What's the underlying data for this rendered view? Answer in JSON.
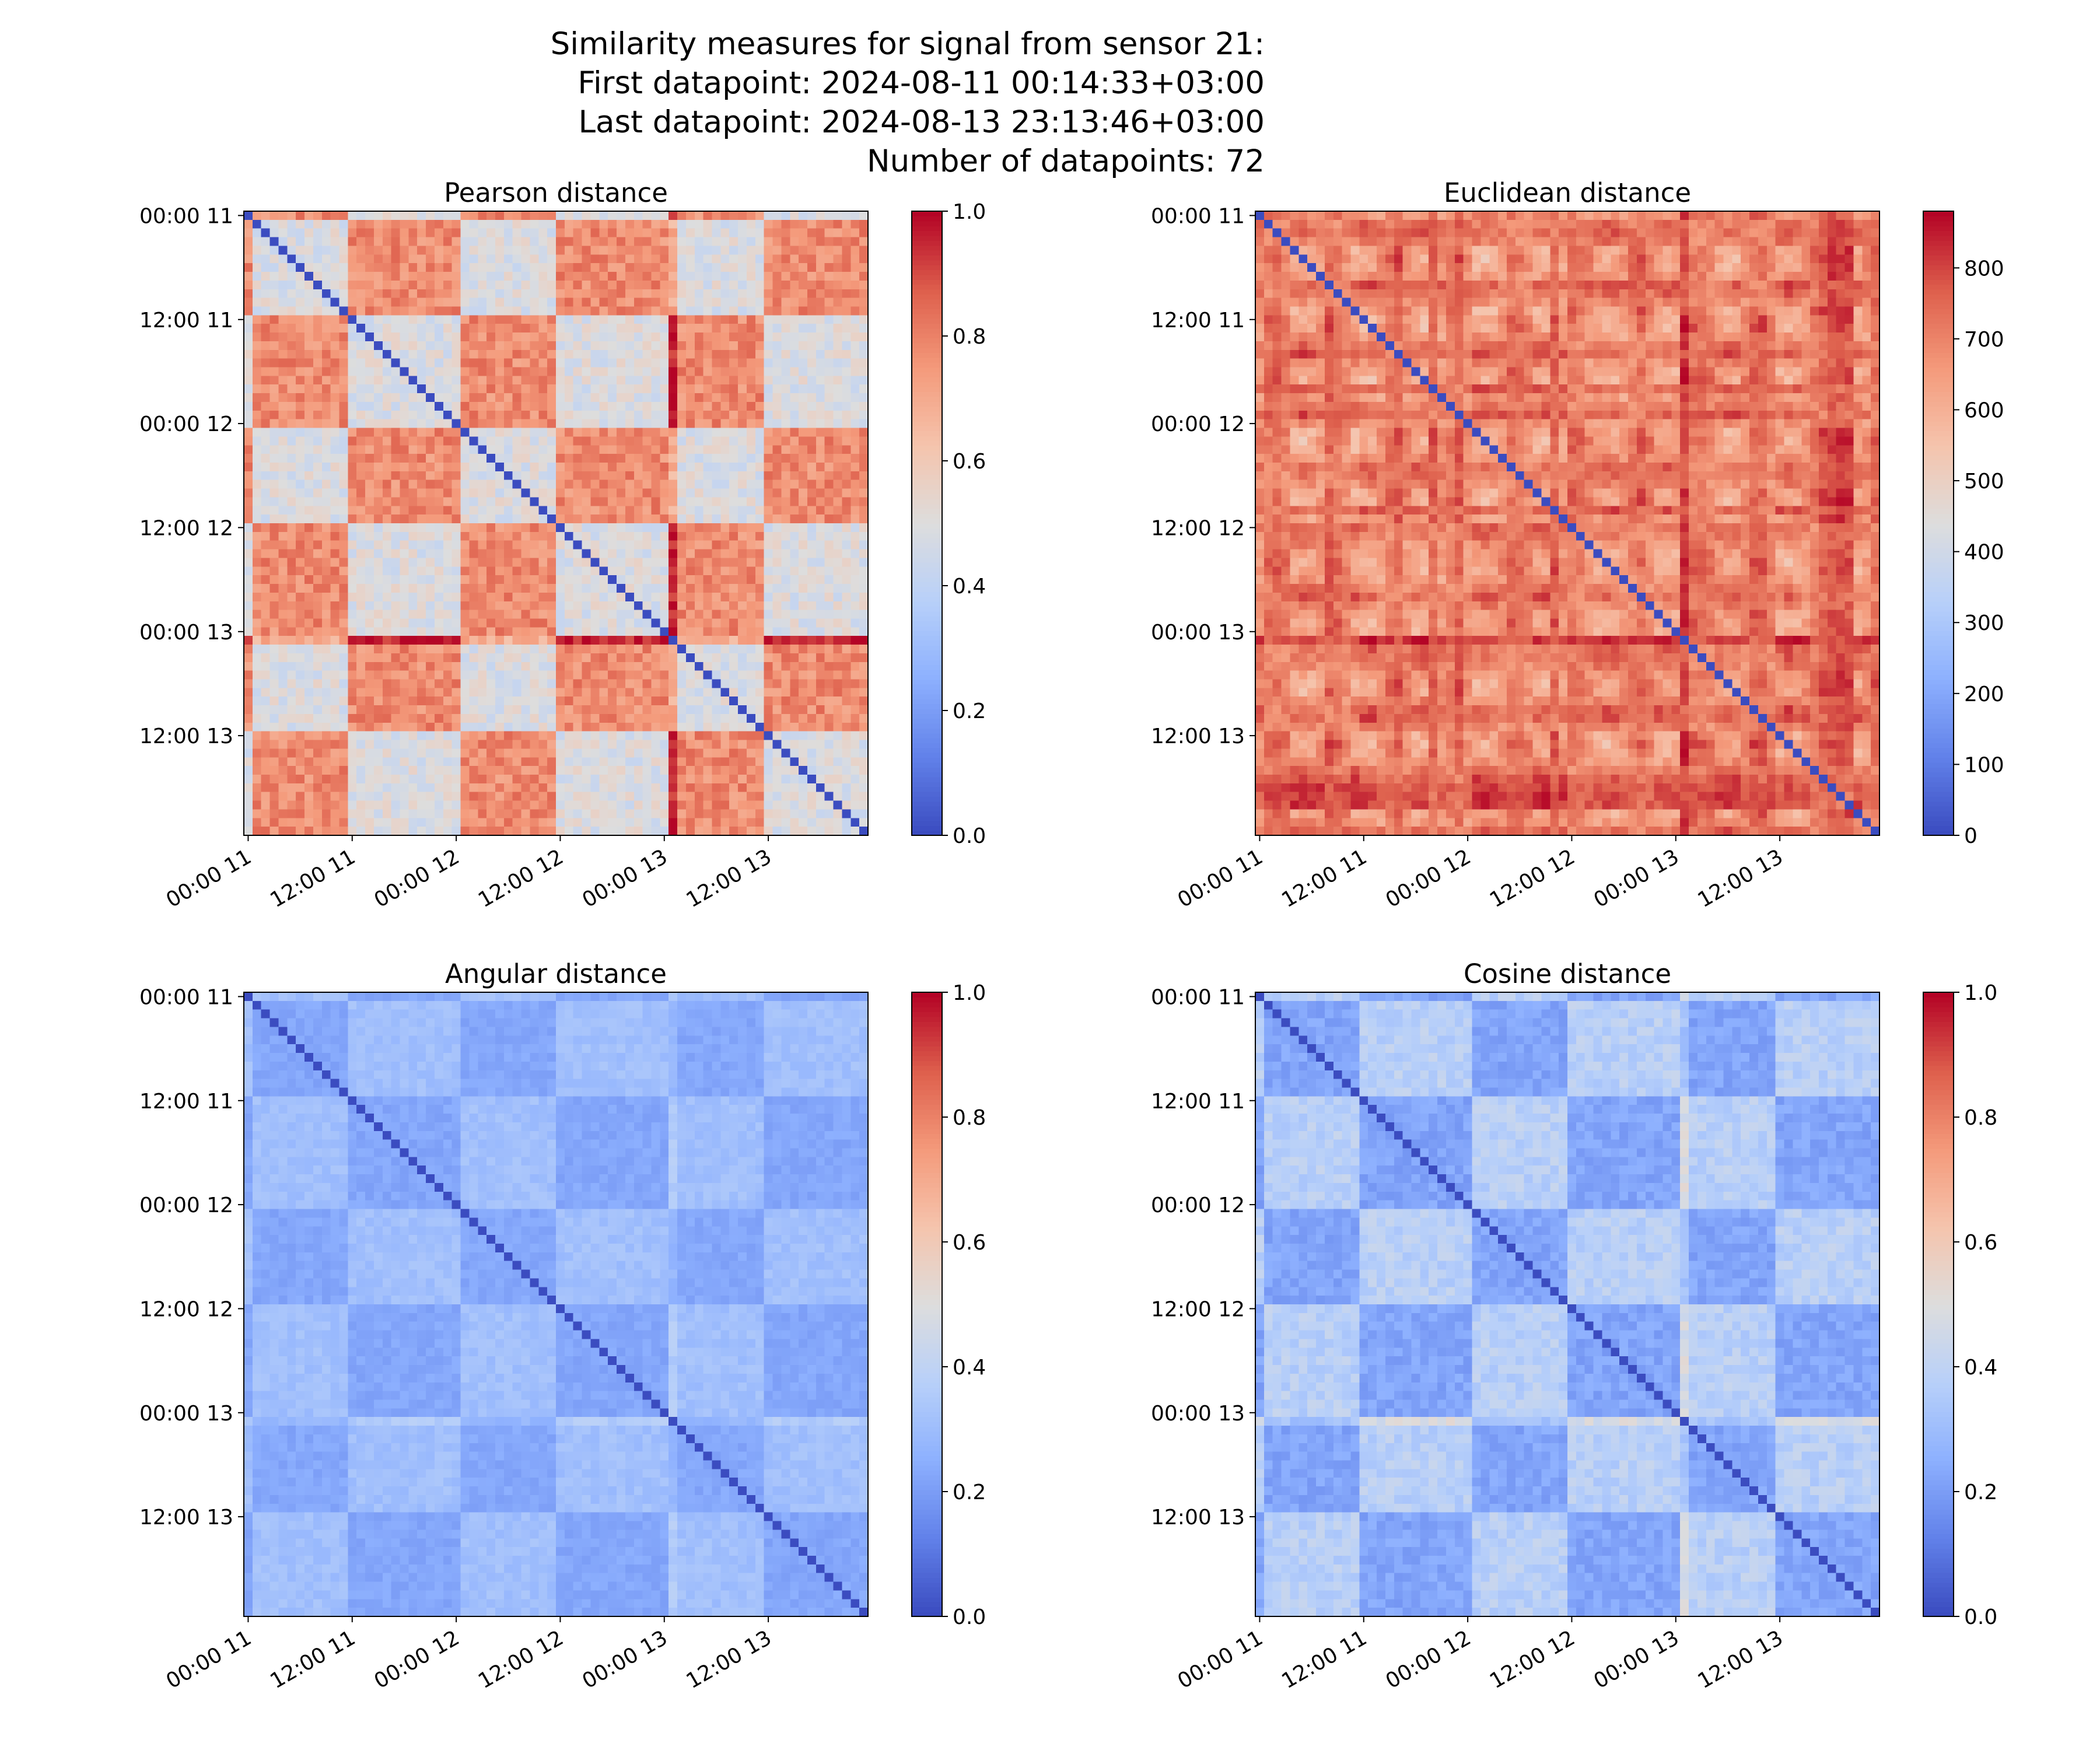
{
  "figure": {
    "suptitle_lines": [
      "Similarity measures for signal from sensor 21:",
      "First datapoint: 2024-08-11 00:14:33+03:00",
      "Last datapoint: 2024-08-13 23:13:46+03:00",
      "Number of datapoints: 72"
    ]
  },
  "chart_data": [
    {
      "type": "heatmap",
      "title": "Pearson distance",
      "colormap": "coolwarm",
      "n_points": 72,
      "xticks": [
        "00:00 11",
        "12:00 11",
        "00:00 12",
        "12:00 12",
        "00:00 13",
        "12:00 13"
      ],
      "yticks": [
        "00:00 11",
        "12:00 11",
        "00:00 12",
        "12:00 12",
        "00:00 13",
        "12:00 13"
      ],
      "tick_index": [
        0,
        12,
        24,
        36,
        48,
        60
      ],
      "colorbar": {
        "min": 0,
        "max": 1,
        "ticks": [
          "0.0",
          "0.2",
          "0.4",
          "0.6",
          "0.8",
          "1.0"
        ]
      },
      "value_range": [
        0,
        1
      ],
      "diagonal": 0
    },
    {
      "type": "heatmap",
      "title": "Euclidean distance",
      "colormap": "coolwarm",
      "n_points": 72,
      "xticks": [
        "00:00 11",
        "12:00 11",
        "00:00 12",
        "12:00 12",
        "00:00 13",
        "12:00 13"
      ],
      "yticks": [
        "00:00 11",
        "12:00 11",
        "00:00 12",
        "12:00 12",
        "00:00 13",
        "12:00 13"
      ],
      "tick_index": [
        0,
        12,
        24,
        36,
        48,
        60
      ],
      "colorbar": {
        "min": 0,
        "max": 880,
        "ticks": [
          "0",
          "100",
          "200",
          "300",
          "400",
          "500",
          "600",
          "700",
          "800"
        ]
      },
      "value_range": [
        0,
        880
      ],
      "diagonal": 0
    },
    {
      "type": "heatmap",
      "title": "Angular distance",
      "colormap": "coolwarm",
      "n_points": 72,
      "xticks": [
        "00:00 11",
        "12:00 11",
        "00:00 12",
        "12:00 12",
        "00:00 13",
        "12:00 13"
      ],
      "yticks": [
        "00:00 11",
        "12:00 11",
        "00:00 12",
        "12:00 12",
        "00:00 13",
        "12:00 13"
      ],
      "tick_index": [
        0,
        12,
        24,
        36,
        48,
        60
      ],
      "colorbar": {
        "min": 0,
        "max": 1,
        "ticks": [
          "0.0",
          "0.2",
          "0.4",
          "0.6",
          "0.8",
          "1.0"
        ]
      },
      "value_range": [
        0,
        1
      ],
      "diagonal": 0
    },
    {
      "type": "heatmap",
      "title": "Cosine distance",
      "colormap": "coolwarm",
      "n_points": 72,
      "xticks": [
        "00:00 11",
        "12:00 11",
        "00:00 12",
        "12:00 12",
        "00:00 13",
        "12:00 13"
      ],
      "yticks": [
        "00:00 11",
        "12:00 11",
        "00:00 12",
        "12:00 12",
        "00:00 13",
        "12:00 13"
      ],
      "tick_index": [
        0,
        12,
        24,
        36,
        48,
        60
      ],
      "colorbar": {
        "min": 0,
        "max": 1,
        "ticks": [
          "0.0",
          "0.2",
          "0.4",
          "0.6",
          "0.8",
          "1.0"
        ]
      },
      "value_range": [
        0,
        1
      ],
      "diagonal": 0
    }
  ]
}
